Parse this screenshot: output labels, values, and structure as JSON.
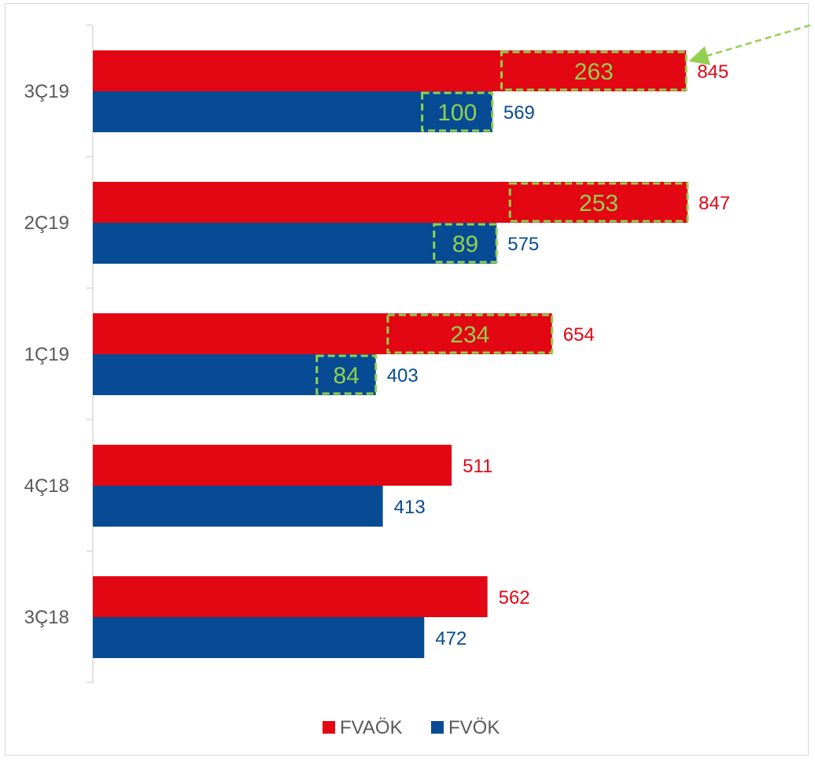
{
  "chart_data": {
    "type": "bar",
    "orientation": "horizontal",
    "categories": [
      "3Ç19",
      "2Ç19",
      "1Ç19",
      "4Ç18",
      "3Ç18"
    ],
    "series": [
      {
        "name": "FVAÖK",
        "values": [
          845,
          847,
          654,
          511,
          562
        ],
        "color": "#e30613"
      },
      {
        "name": "FVÖK",
        "values": [
          569,
          575,
          403,
          413,
          472
        ],
        "color": "#064b93"
      }
    ],
    "increment_labels": {
      "FVAÖK": [
        "263",
        "253",
        "234",
        null,
        null
      ],
      "FVÖK": [
        "100",
        "89",
        "84",
        null,
        null
      ]
    },
    "increment_color": "#92d050",
    "xlim": [
      0,
      1150
    ],
    "legend_position": "bottom",
    "grid": false
  }
}
